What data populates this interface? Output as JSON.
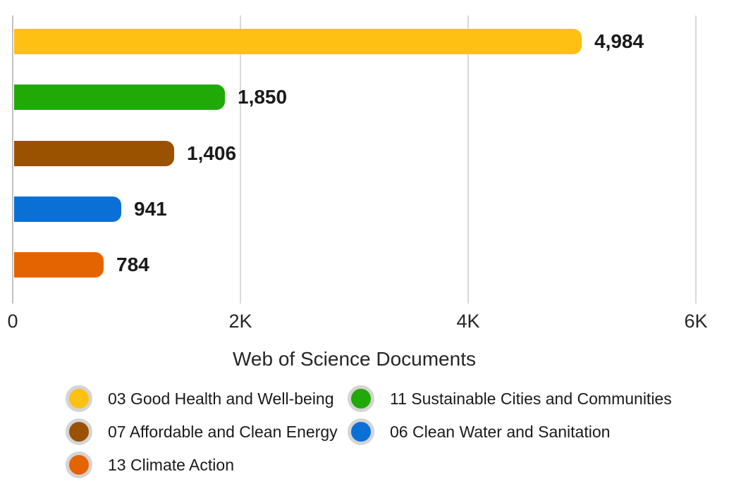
{
  "chart_data": {
    "type": "bar",
    "orientation": "horizontal",
    "categories": [
      "03 Good Health and Well-being",
      "11 Sustainable Cities and Communities",
      "07 Affordable and Clean Energy",
      "06 Clean Water and Sanitation",
      "13 Climate Action"
    ],
    "values": [
      4984,
      1850,
      1406,
      941,
      784
    ],
    "value_labels": [
      "4,984",
      "1,850",
      "1,406",
      "941",
      "784"
    ],
    "colors": [
      "#fdc013",
      "#21a907",
      "#9a5201",
      "#0b70d5",
      "#e56402"
    ],
    "xlabel": "Web of Science Documents",
    "xlim": [
      0,
      6000
    ],
    "x_ticks": [
      0,
      2000,
      4000,
      6000
    ],
    "x_tick_labels": [
      "0",
      "2K",
      "4K",
      "6K"
    ],
    "grid": "vertical",
    "legend_position": "bottom",
    "legend": [
      {
        "label": "03 Good Health and Well-being",
        "color": "#fdc013"
      },
      {
        "label": "11 Sustainable Cities and Communities",
        "color": "#21a907"
      },
      {
        "label": "07 Affordable and Clean Energy",
        "color": "#9a5201"
      },
      {
        "label": "06 Clean Water and Sanitation",
        "color": "#0b70d5"
      },
      {
        "label": "13 Climate Action",
        "color": "#e56402"
      }
    ]
  },
  "styles": {
    "axis_color": "#c2c2c2",
    "grid_color": "#d9d9d9",
    "label_color": "#1a1a1a",
    "legend_ring_color": "#d4d4d4"
  }
}
